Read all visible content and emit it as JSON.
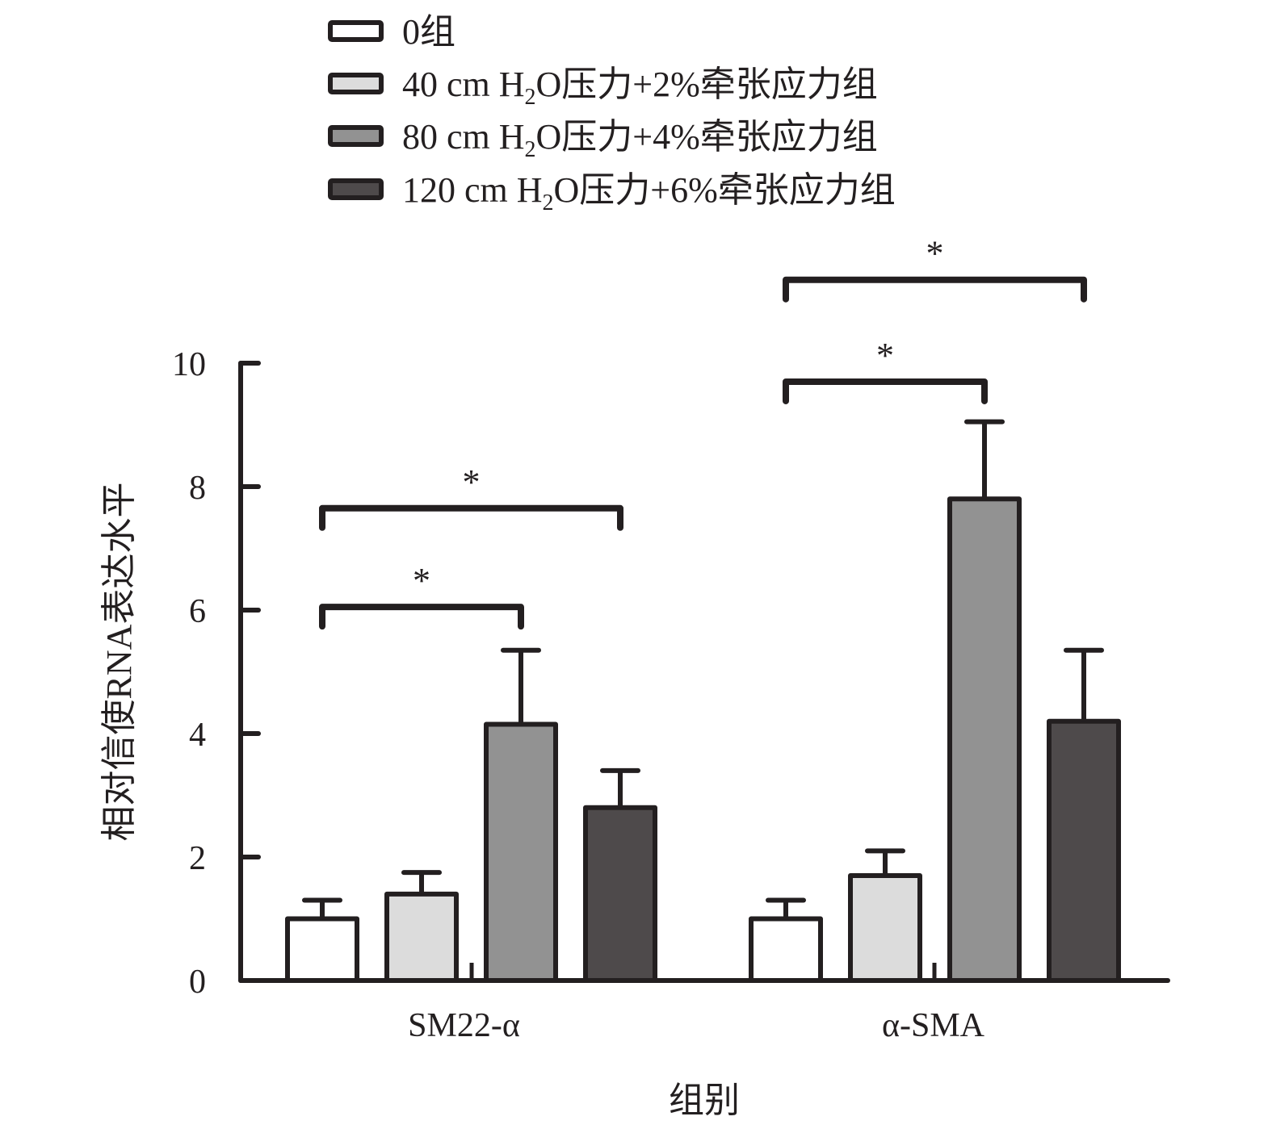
{
  "chart_data": {
    "type": "bar",
    "title": "",
    "xlabel": "组别",
    "ylabel": "相对信使RNA表达水平",
    "ylim": [
      0,
      10
    ],
    "yticks": [
      "0",
      "2",
      "4",
      "6",
      "8",
      "10"
    ],
    "categories": [
      "SM22-α",
      "α-SMA"
    ],
    "legend_placement": "top",
    "series": [
      {
        "name": "0组",
        "label_parts": {
          "before": "0组",
          "sub": "",
          "after": ""
        },
        "color": "#ffffff",
        "values": [
          1.0,
          1.0
        ],
        "errors": [
          0.3,
          0.3
        ]
      },
      {
        "name": "40 cm H2O压力+2%牵张应力组",
        "label_parts": {
          "before": "40 cm H",
          "sub": "2",
          "after": "O压力+2%牵张应力组"
        },
        "color": "#dcdcdc",
        "values": [
          1.4,
          1.7
        ],
        "errors": [
          0.35,
          0.4
        ]
      },
      {
        "name": "80 cm H2O压力+4%牵张应力组",
        "label_parts": {
          "before": "80 cm H",
          "sub": "2",
          "after": "O压力+4%牵张应力组"
        },
        "color": "#929292",
        "values": [
          4.15,
          7.8
        ],
        "errors": [
          1.2,
          1.25
        ]
      },
      {
        "name": "120 cm H2O压力+6%牵张应力组",
        "label_parts": {
          "before": "120 cm H",
          "sub": "2",
          "after": "O压力+6%牵张应力组"
        },
        "color": "#4e4a4b",
        "values": [
          2.8,
          4.2
        ],
        "errors": [
          0.6,
          1.15
        ]
      }
    ],
    "significance": [
      {
        "category": 0,
        "from_series": 0,
        "to_series": 2,
        "bracket_y": 6.05,
        "label": "*"
      },
      {
        "category": 0,
        "from_series": 0,
        "to_series": 3,
        "bracket_y": 7.65,
        "label": "*"
      },
      {
        "category": 1,
        "from_series": 0,
        "to_series": 2,
        "bracket_y": 9.7,
        "label": "*"
      },
      {
        "category": 1,
        "from_series": 0,
        "to_series": 3,
        "bracket_y": 11.35,
        "label": "*"
      }
    ]
  },
  "colors": {
    "axis": "#231f20",
    "stroke": "#231f20"
  }
}
